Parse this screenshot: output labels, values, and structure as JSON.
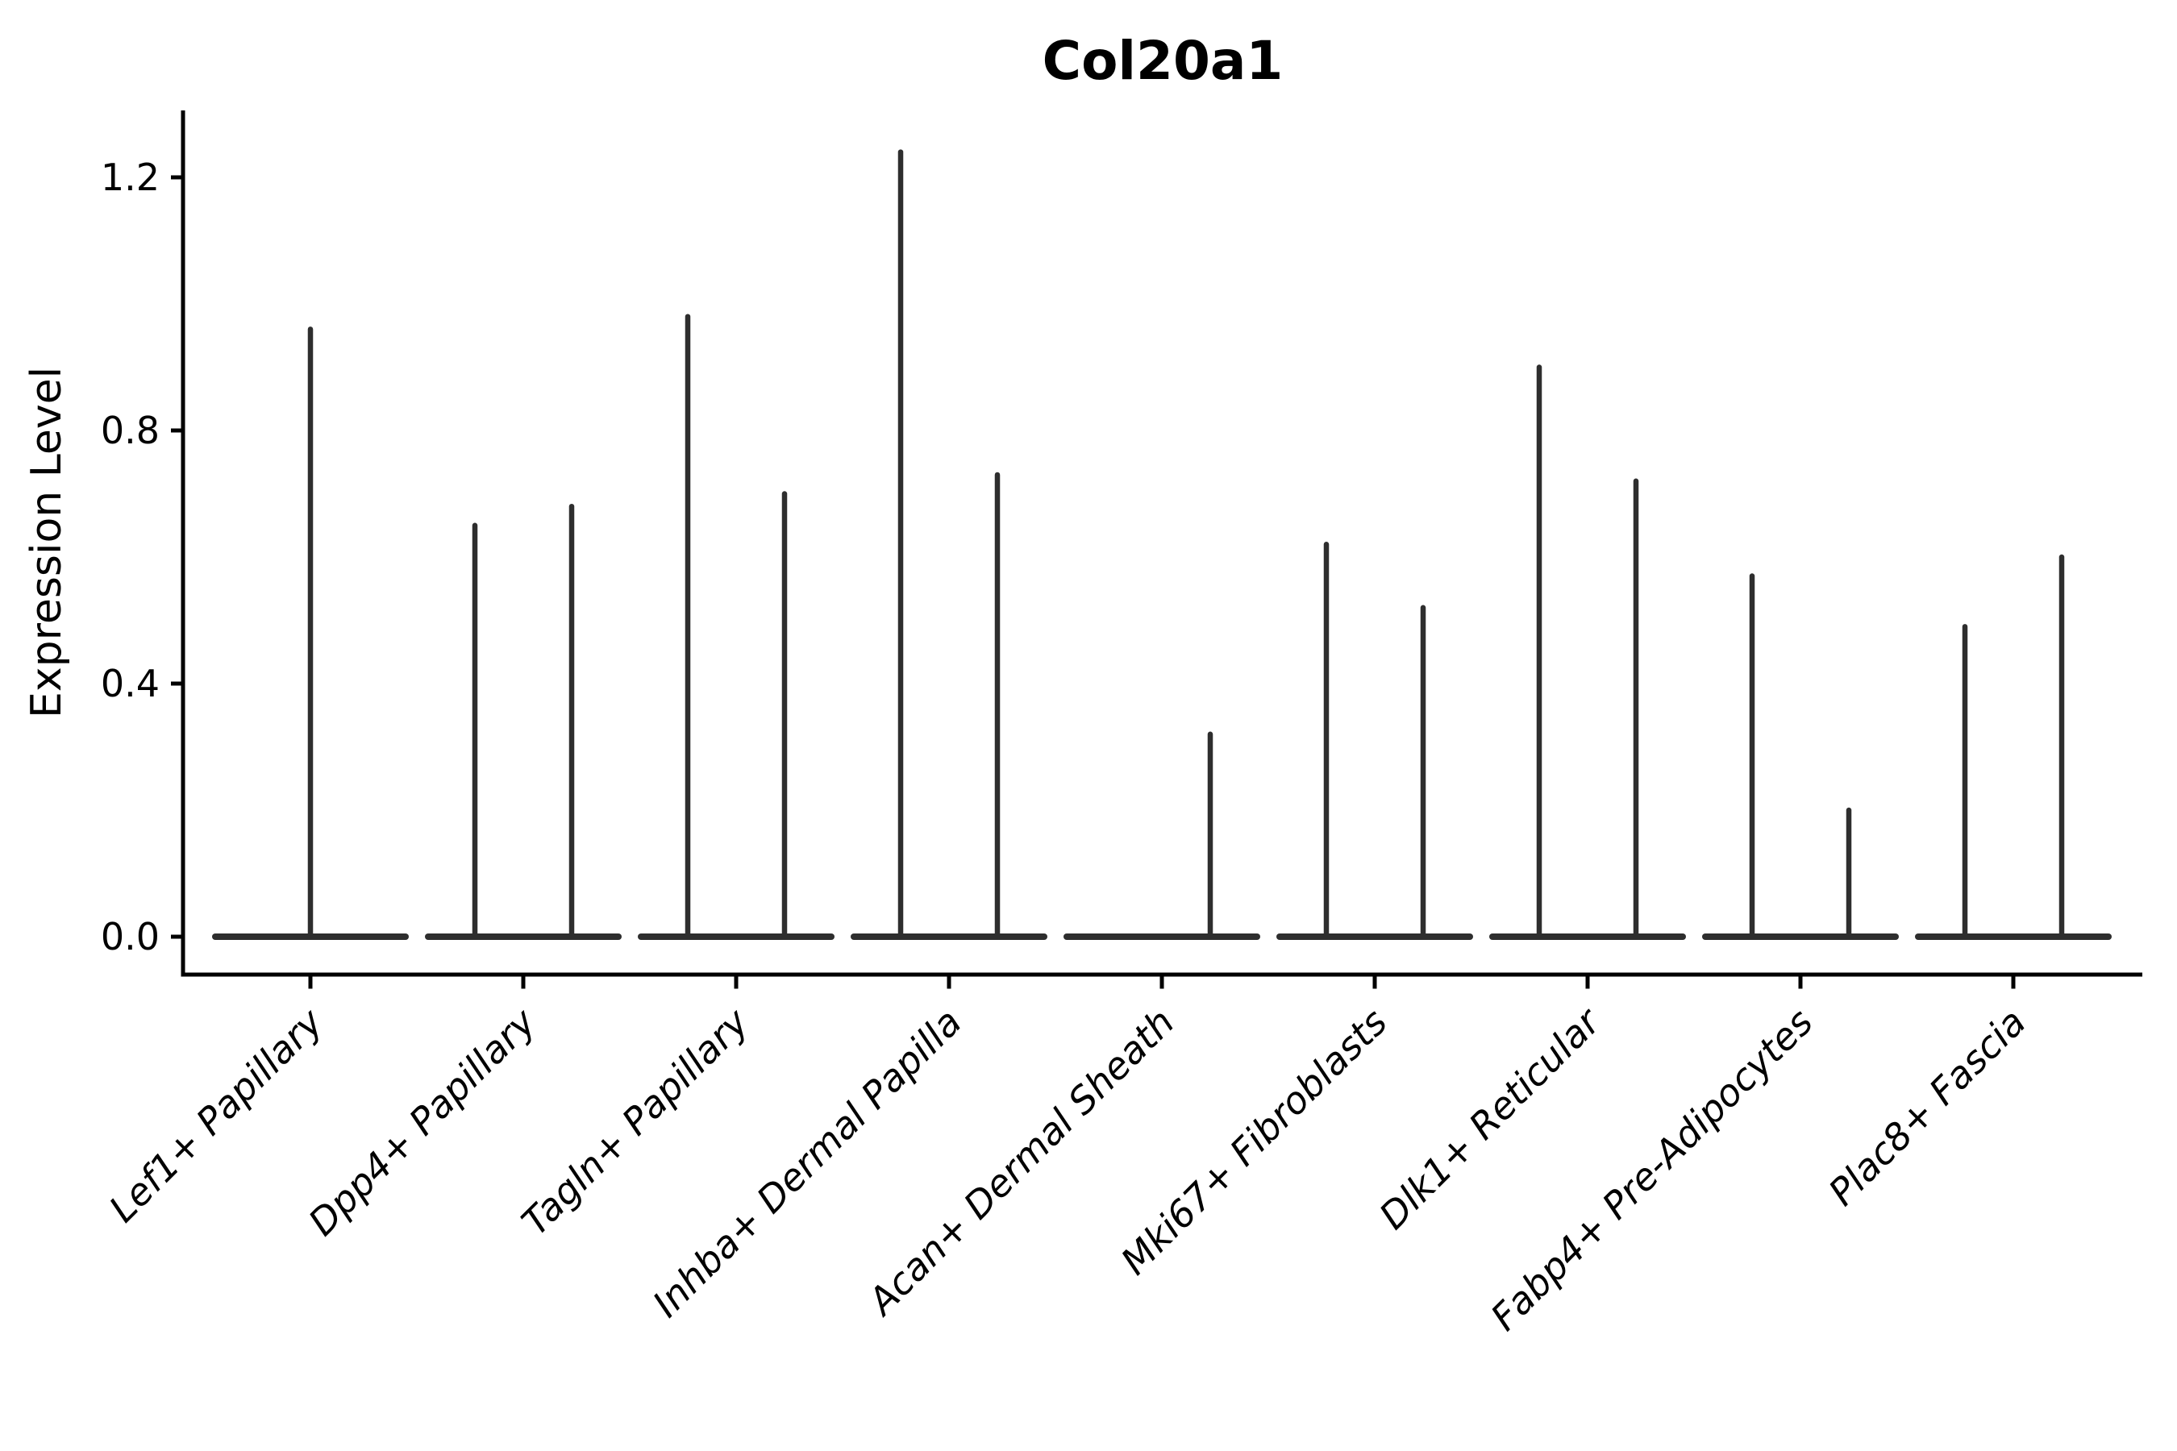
{
  "figure": {
    "background": "#ffffff",
    "text_color": "#000000",
    "violin_color": "#2e2e2e",
    "axis_color": "#000000"
  },
  "chart_data": {
    "type": "violin",
    "title": "Col20a1",
    "xlabel": "",
    "ylabel": "Expression Level",
    "grid": false,
    "legend_position": "none",
    "ylim": [
      -0.06,
      1.31
    ],
    "yticks": [
      {
        "label": "0.0",
        "value": 0.0
      },
      {
        "label": "0.4",
        "value": 0.4
      },
      {
        "label": "0.8",
        "value": 0.8
      },
      {
        "label": "1.2",
        "value": 1.2
      }
    ],
    "categories": [
      "Lef1+ Papillary",
      "Dpp4+ Papillary",
      "Tagln+ Papillary",
      "Inhba+ Dermal Papilla",
      "Acan+ Dermal Sheath",
      "Mki67+ Fibroblasts",
      "Dlk1+ Reticular",
      "Fabp4+ Pre-Adipocytes",
      "Plac8+ Fascia"
    ],
    "violins": [
      {
        "category": "Lef1+ Papillary",
        "components": [
          {
            "position": "center",
            "max_expression": 0.96
          }
        ]
      },
      {
        "category": "Dpp4+ Papillary",
        "components": [
          {
            "position": "left",
            "max_expression": 0.65
          },
          {
            "position": "right",
            "max_expression": 0.68
          }
        ]
      },
      {
        "category": "Tagln+ Papillary",
        "components": [
          {
            "position": "left",
            "max_expression": 0.98
          },
          {
            "position": "right",
            "max_expression": 0.7
          }
        ]
      },
      {
        "category": "Inhba+ Dermal Papilla",
        "components": [
          {
            "position": "left",
            "max_expression": 1.24
          },
          {
            "position": "right",
            "max_expression": 0.73
          }
        ]
      },
      {
        "category": "Acan+ Dermal Sheath",
        "components": [
          {
            "position": "left",
            "max_expression": 0.0
          },
          {
            "position": "right",
            "max_expression": 0.32
          }
        ]
      },
      {
        "category": "Mki67+ Fibroblasts",
        "components": [
          {
            "position": "left",
            "max_expression": 0.62
          },
          {
            "position": "right",
            "max_expression": 0.52
          }
        ]
      },
      {
        "category": "Dlk1+ Reticular",
        "components": [
          {
            "position": "left",
            "max_expression": 0.9
          },
          {
            "position": "right",
            "max_expression": 0.72
          }
        ]
      },
      {
        "category": "Fabp4+ Pre-Adipocytes",
        "components": [
          {
            "position": "left",
            "max_expression": 0.57
          },
          {
            "position": "right",
            "max_expression": 0.2
          }
        ]
      },
      {
        "category": "Plac8+ Fascia",
        "components": [
          {
            "position": "left",
            "max_expression": 0.49
          },
          {
            "position": "right",
            "max_expression": 0.6
          }
        ]
      }
    ]
  }
}
